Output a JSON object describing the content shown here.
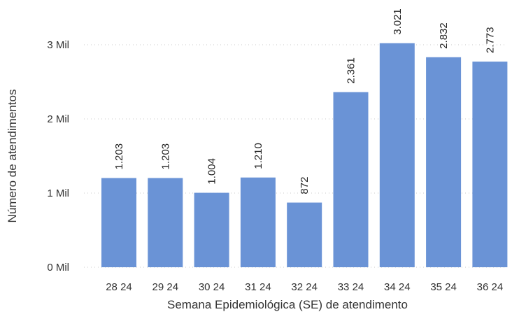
{
  "chart_data": {
    "type": "bar",
    "categories": [
      "28 24",
      "29 24",
      "30 24",
      "31 24",
      "32 24",
      "33 24",
      "34 24",
      "35 24",
      "36 24"
    ],
    "values": [
      1203,
      1203,
      1004,
      1210,
      872,
      2361,
      3021,
      2832,
      2773
    ],
    "data_labels": [
      "1.203",
      "1.203",
      "1.004",
      "1.210",
      "872",
      "2.361",
      "3.021",
      "2.832",
      "2.773"
    ],
    "xlabel": "Semana Epidemiológica (SE) de atendimento",
    "ylabel": "Número de atendimentos",
    "ylim": [
      0,
      3000
    ],
    "yticks": [
      0,
      1000,
      2000,
      3000
    ],
    "ytick_labels": [
      "0 Mil",
      "1 Mil",
      "2 Mil",
      "3 Mil"
    ],
    "grid": true,
    "bar_color": "#6a93d6"
  }
}
